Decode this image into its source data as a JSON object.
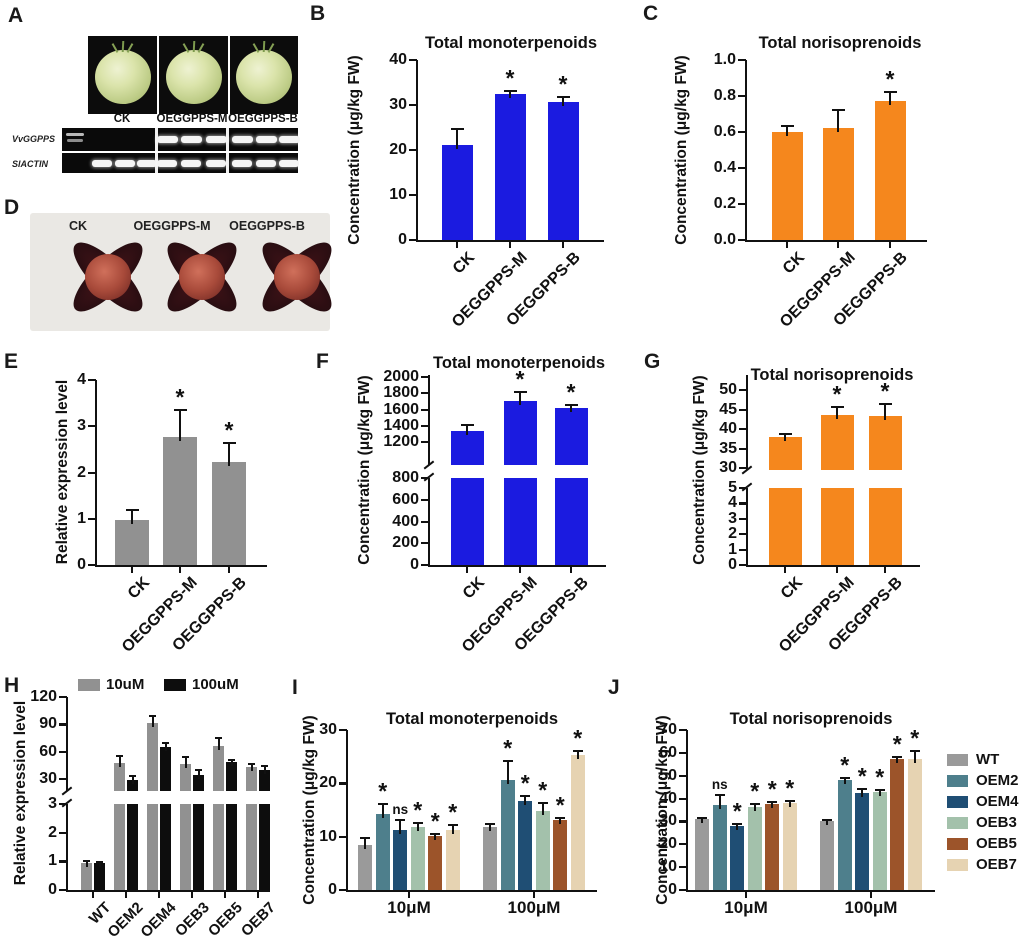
{
  "panel_letters": {
    "A": "A",
    "B": "B",
    "C": "C",
    "D": "D",
    "E": "E",
    "F": "F",
    "G": "G",
    "H": "H",
    "I": "I",
    "J": "J"
  },
  "panel_a": {
    "photo_labels": [
      "CK",
      "OEGGPPS-M",
      "OEGGPPS-B"
    ],
    "gel_labels": [
      "VvGGPPS",
      "SlACTIN"
    ]
  },
  "panel_d": {
    "photo_labels": [
      "CK",
      "OEGGPPS-M",
      "OEGGPPS-B"
    ]
  },
  "colors": {
    "blue": "#1b1be0",
    "orange": "#f5871d",
    "gray": "#919191",
    "black": "#0d0d0d",
    "WT": "#9a9a9a",
    "OEM2": "#4e7f8c",
    "OEM4": "#1f4e74",
    "OEB3": "#a3c1ab",
    "OEB5": "#9c542a",
    "OEB7": "#e6d3b2",
    "axis": "#111111"
  },
  "chart_data": [
    {
      "id": "B",
      "type": "bar",
      "title": "Total monoterpenoids",
      "ylabel": "Concentration (μg/kg FW)",
      "categories": [
        "CK",
        "OEGGPPS-M",
        "OEGGPPS-B"
      ],
      "values": [
        21.2,
        32.5,
        30.6
      ],
      "errors": [
        3.4,
        0.7,
        1.2
      ],
      "sig": [
        "",
        "*",
        "*"
      ],
      "color_key": "blue",
      "ylim": [
        0,
        40
      ],
      "yticks": [
        0,
        10,
        20,
        30,
        40
      ],
      "ytick_labels": [
        "0",
        "10",
        "20",
        "30",
        "40"
      ]
    },
    {
      "id": "C",
      "type": "bar",
      "title": "Total norisoprenoids",
      "ylabel": "Concentration (μg/kg FW)",
      "categories": [
        "CK",
        "OEGGPPS-M",
        "OEGGPPS-B"
      ],
      "values": [
        0.6,
        0.62,
        0.77
      ],
      "errors": [
        0.035,
        0.1,
        0.055
      ],
      "sig": [
        "",
        "",
        "*"
      ],
      "color_key": "orange",
      "ylim": [
        0,
        1
      ],
      "yticks": [
        0,
        0.2,
        0.4,
        0.6,
        0.8,
        1.0
      ],
      "ytick_labels": [
        "0.0",
        "0.2",
        "0.4",
        "0.6",
        "0.8",
        "1.0"
      ]
    },
    {
      "id": "E",
      "type": "bar",
      "title": "",
      "ylabel": "Relative expression level",
      "categories": [
        "CK",
        "OEGGPPS-M",
        "OEGGPPS-B"
      ],
      "values": [
        0.98,
        2.77,
        2.22
      ],
      "errors": [
        0.22,
        0.58,
        0.42
      ],
      "sig": [
        "",
        "*",
        "*"
      ],
      "color_key": "gray",
      "ylim": [
        0,
        4
      ],
      "yticks": [
        0,
        1,
        2,
        3,
        4
      ],
      "ytick_labels": [
        "0",
        "1",
        "2",
        "3",
        "4"
      ]
    },
    {
      "id": "F",
      "type": "bar",
      "title": "Total monoterpenoids",
      "ylabel": "Concentration (μg/kg FW)",
      "categories": [
        "CK",
        "OEGGPPS-M",
        "OEGGPPS-B"
      ],
      "values": [
        1330,
        1710,
        1615
      ],
      "errors": [
        80,
        100,
        35
      ],
      "sig": [
        "",
        "*",
        "*"
      ],
      "color_key": "blue",
      "axis_break": {
        "lower": {
          "domain": [
            0,
            800
          ],
          "ticks": [
            0,
            200,
            400,
            600,
            800
          ],
          "labels": [
            "0",
            "200",
            "400",
            "600",
            "800"
          ]
        },
        "upper": {
          "domain": [
            1200,
            2000
          ],
          "ticks": [
            1200,
            1400,
            1600,
            1800,
            2000
          ],
          "labels": [
            "1200",
            "1400",
            "1600",
            "1800",
            "2000"
          ]
        }
      }
    },
    {
      "id": "G",
      "type": "bar",
      "title": "Total norisoprenoids",
      "ylabel": "Concentration (μg/kg FW)",
      "categories": [
        "CK",
        "OEGGPPS-M",
        "OEGGPPS-B"
      ],
      "values": [
        38,
        43.5,
        43.3
      ],
      "errors": [
        0.6,
        2.2,
        3.0
      ],
      "sig": [
        "",
        "*",
        "*"
      ],
      "color_key": "orange",
      "axis_break": {
        "lower": {
          "domain": [
            0,
            5
          ],
          "ticks": [
            0,
            1,
            2,
            3,
            4,
            5
          ],
          "labels": [
            "0",
            "1",
            "2",
            "3",
            "4",
            "5"
          ]
        },
        "upper": {
          "domain": [
            30,
            50
          ],
          "ticks": [
            30,
            35,
            40,
            45,
            50
          ],
          "labels": [
            "30",
            "35",
            "40",
            "45",
            "50"
          ]
        }
      }
    },
    {
      "id": "H",
      "type": "grouped_bar",
      "title": "",
      "ylabel": "Relative expression level",
      "categories": [
        "WT",
        "OEM2",
        "OEM4",
        "OEB3",
        "OEB5",
        "OEB7"
      ],
      "series": [
        {
          "name": "10uM",
          "color_key": "gray",
          "values": [
            0.95,
            48,
            92,
            46,
            66,
            43
          ],
          "errors": [
            0.06,
            7,
            7,
            8,
            9,
            3
          ],
          "sig": [
            "",
            "",
            "",
            "",
            "",
            ""
          ]
        },
        {
          "name": "100uM",
          "color_key": "black",
          "values": [
            0.93,
            29,
            65,
            34,
            49,
            40
          ],
          "errors": [
            0.05,
            4,
            5,
            6,
            2,
            4
          ],
          "sig": [
            "",
            "",
            "",
            "",
            "",
            ""
          ]
        }
      ],
      "legend": [
        "10uM",
        "100uM"
      ],
      "axis_break": {
        "lower": {
          "domain": [
            0,
            3
          ],
          "ticks": [
            0,
            1,
            2,
            3
          ],
          "labels": [
            "0",
            "1",
            "2",
            "3"
          ]
        },
        "upper": {
          "domain": [
            30,
            120
          ],
          "ticks": [
            30,
            60,
            90,
            120
          ],
          "labels": [
            "30",
            "60",
            "90",
            "120"
          ]
        }
      }
    },
    {
      "id": "I",
      "type": "grouped_bar",
      "title": "Total monoterpenoids",
      "ylabel": "Concentration (μg/kg FW)",
      "categories": [
        "10μM",
        "100μM"
      ],
      "series": [
        {
          "name": "WT",
          "color_key": "WT",
          "values": [
            8.5,
            11.9
          ],
          "errors": [
            1.2,
            0.5
          ],
          "sig": [
            "",
            ""
          ]
        },
        {
          "name": "OEM2",
          "color_key": "OEM2",
          "values": [
            14.3,
            20.7
          ],
          "errors": [
            1.8,
            3.5
          ],
          "sig": [
            "*",
            "*"
          ]
        },
        {
          "name": "OEM4",
          "color_key": "OEM4",
          "values": [
            11.2,
            16.7
          ],
          "errors": [
            2.0,
            1.0
          ],
          "sig": [
            "ns",
            "*"
          ]
        },
        {
          "name": "OEB3",
          "color_key": "OEB3",
          "values": [
            11.8,
            14.8
          ],
          "errors": [
            0.8,
            1.5
          ],
          "sig": [
            "*",
            "*"
          ]
        },
        {
          "name": "OEB5",
          "color_key": "OEB5",
          "values": [
            10.1,
            13.1
          ],
          "errors": [
            0.4,
            0.4
          ],
          "sig": [
            "*",
            "*"
          ]
        },
        {
          "name": "OEB7",
          "color_key": "OEB7",
          "values": [
            11.2,
            25.4
          ],
          "errors": [
            1.0,
            0.6
          ],
          "sig": [
            "*",
            "*"
          ]
        }
      ],
      "ylim": [
        0,
        30
      ],
      "yticks": [
        0,
        10,
        20,
        30
      ],
      "ytick_labels": [
        "0",
        "10",
        "20",
        "30"
      ]
    },
    {
      "id": "J",
      "type": "grouped_bar",
      "title": "Total norisoprenoids",
      "ylabel": "Concentration (μg/kg FW)",
      "categories": [
        "10μM",
        "100μM"
      ],
      "series": [
        {
          "name": "WT",
          "color_key": "WT",
          "values": [
            31,
            30
          ],
          "errors": [
            0.6,
            0.5
          ],
          "sig": [
            "",
            ""
          ]
        },
        {
          "name": "OEM2",
          "color_key": "OEM2",
          "values": [
            37,
            48
          ],
          "errors": [
            4.5,
            1.0
          ],
          "sig": [
            "ns",
            "*"
          ]
        },
        {
          "name": "OEM4",
          "color_key": "OEM4",
          "values": [
            28,
            42.5
          ],
          "errors": [
            1.0,
            1.5
          ],
          "sig": [
            "*",
            "*"
          ]
        },
        {
          "name": "OEB3",
          "color_key": "OEB3",
          "values": [
            36.5,
            43
          ],
          "errors": [
            1.0,
            0.8
          ],
          "sig": [
            "*",
            "*"
          ]
        },
        {
          "name": "OEB5",
          "color_key": "OEB5",
          "values": [
            37.8,
            57.5
          ],
          "errors": [
            0.5,
            0.5
          ],
          "sig": [
            "*",
            "*"
          ]
        },
        {
          "name": "OEB7",
          "color_key": "OEB7",
          "values": [
            38,
            57.5
          ],
          "errors": [
            1.0,
            3.5
          ],
          "sig": [
            "*",
            "*"
          ]
        }
      ],
      "legend": [
        "WT",
        "OEM2",
        "OEM4",
        "OEB3",
        "OEB5",
        "OEB7"
      ],
      "ylim": [
        0,
        70
      ],
      "yticks": [
        0,
        10,
        20,
        30,
        40,
        50,
        60,
        70
      ],
      "ytick_labels": [
        "0",
        "10",
        "20",
        "30",
        "40",
        "50",
        "60",
        "70"
      ]
    }
  ]
}
